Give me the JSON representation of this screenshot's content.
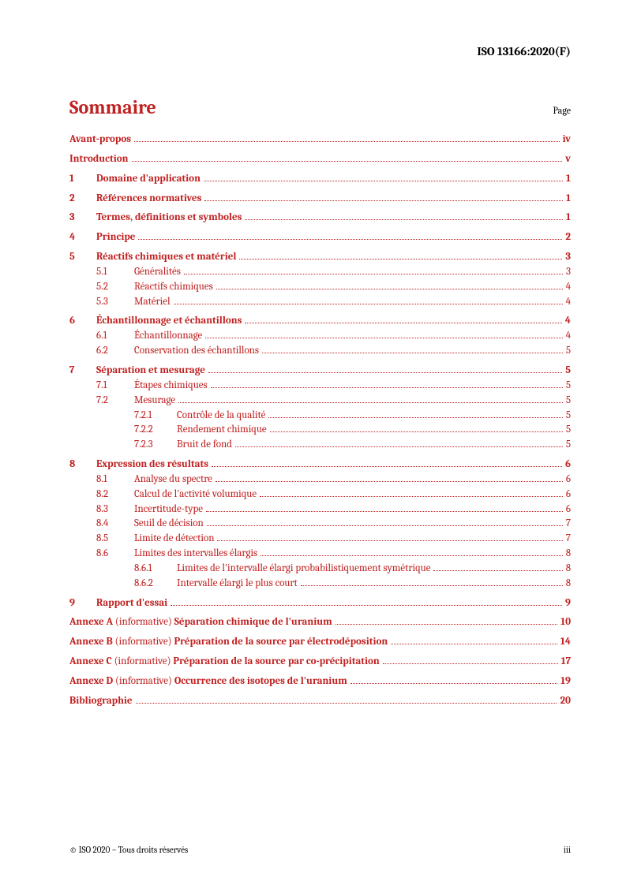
{
  "header": "ISO 13166:2020(F)",
  "title": "Sommaire",
  "page_label": "Page",
  "entries": [
    {
      "level": 0,
      "num": "",
      "label": "Avant-propos",
      "page": "iv",
      "bold": true
    },
    {
      "level": 0,
      "num": "",
      "label": "Introduction",
      "page": "v",
      "bold": true
    },
    {
      "level": 0,
      "num": "1",
      "label": "Domaine d'application",
      "page": "1",
      "bold": true
    },
    {
      "level": 0,
      "num": "2",
      "label": "Références normatives",
      "page": "1",
      "bold": true
    },
    {
      "level": 0,
      "num": "3",
      "label": "Termes, définitions et symboles",
      "page": "1",
      "bold": true
    },
    {
      "level": 0,
      "num": "4",
      "label": "Principe",
      "page": "2",
      "bold": true
    },
    {
      "level": 0,
      "num": "5",
      "label": "Réactifs chimiques et matériel",
      "page": "3",
      "bold": true
    },
    {
      "level": 1,
      "num": "5.1",
      "label": "Généralités",
      "page": "3"
    },
    {
      "level": 1,
      "num": "5.2",
      "label": "Réactifs chimiques",
      "page": "4"
    },
    {
      "level": 1,
      "num": "5.3",
      "label": "Matériel",
      "page": "4"
    },
    {
      "level": 0,
      "num": "6",
      "label": "Échantillonnage et échantillons",
      "page": "4",
      "bold": true
    },
    {
      "level": 1,
      "num": "6.1",
      "label": "Échantillonnage",
      "page": "4"
    },
    {
      "level": 1,
      "num": "6.2",
      "label": "Conservation des échantillons",
      "page": "5"
    },
    {
      "level": 0,
      "num": "7",
      "label": "Séparation et mesurage",
      "page": "5",
      "bold": true
    },
    {
      "level": 1,
      "num": "7.1",
      "label": "Étapes chimiques",
      "page": "5"
    },
    {
      "level": 1,
      "num": "7.2",
      "label": "Mesurage",
      "page": "5"
    },
    {
      "level": 2,
      "num": "7.2.1",
      "label": "Contrôle de la qualité",
      "page": "5"
    },
    {
      "level": 2,
      "num": "7.2.2",
      "label": "Rendement chimique",
      "page": "5"
    },
    {
      "level": 2,
      "num": "7.2.3",
      "label": "Bruit de fond",
      "page": "5"
    },
    {
      "level": 0,
      "num": "8",
      "label": "Expression des résultats",
      "page": "6",
      "bold": true
    },
    {
      "level": 1,
      "num": "8.1",
      "label": "Analyse du spectre",
      "page": "6"
    },
    {
      "level": 1,
      "num": "8.2",
      "label": "Calcul de l'activité volumique",
      "page": "6"
    },
    {
      "level": 1,
      "num": "8.3",
      "label": "Incertitude-type",
      "page": "6"
    },
    {
      "level": 1,
      "num": "8.4",
      "label": "Seuil de décision",
      "page": "7"
    },
    {
      "level": 1,
      "num": "8.5",
      "label": "Limite de détection",
      "page": "7"
    },
    {
      "level": 1,
      "num": "8.6",
      "label": "Limites des intervalles élargis",
      "page": "8"
    },
    {
      "level": 2,
      "num": "8.6.1",
      "label": "Limites de l'intervalle élargi probabilistiquement symétrique",
      "page": "8"
    },
    {
      "level": 2,
      "num": "8.6.2",
      "label": "Intervalle élargi le plus court",
      "page": "8"
    },
    {
      "level": 0,
      "num": "9",
      "label": "Rapport d'essai",
      "page": "9",
      "bold": true
    }
  ],
  "annexes": [
    {
      "prefix": "Annexe A",
      "mid": " (informative) ",
      "title": "Séparation chimique de l'uranium",
      "page": "10"
    },
    {
      "prefix": "Annexe B",
      "mid": " (informative) ",
      "title": "Préparation de la source par électrodéposition",
      "page": "14"
    },
    {
      "prefix": "Annexe C",
      "mid": " (informative) ",
      "title": "Préparation de la source par co-précipitation",
      "page": "17"
    },
    {
      "prefix": "Annexe D",
      "mid": " (informative) ",
      "title": "Occurrence des isotopes de l'uranium",
      "page": "19"
    }
  ],
  "biblio": {
    "label": "Bibliographie",
    "page": "20"
  },
  "footer": {
    "left": "© ISO 2020 – Tous droits réservés",
    "right": "iii"
  },
  "colors": {
    "accent": "#c02020",
    "text": "#000000",
    "bg": "#ffffff"
  }
}
